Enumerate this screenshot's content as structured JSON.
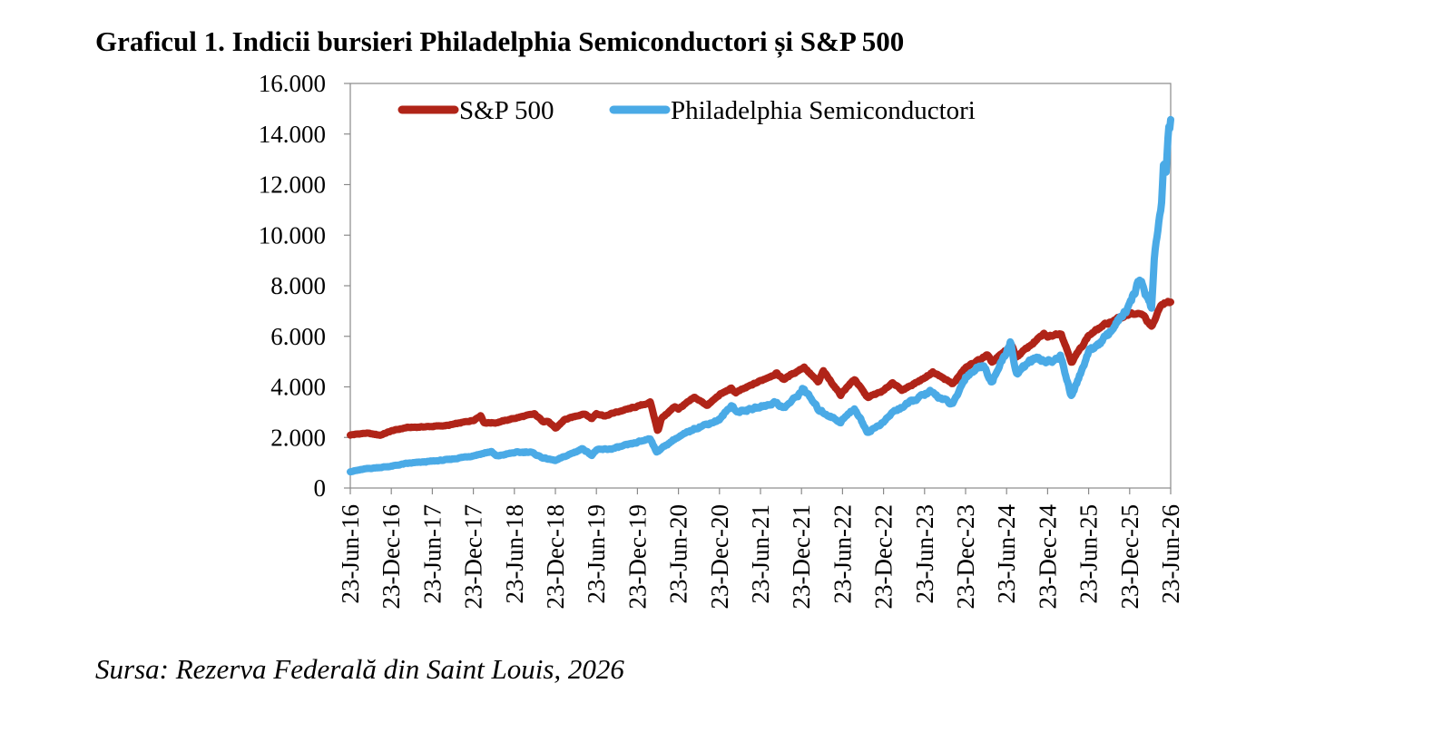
{
  "title": "Graficul 1. Indicii bursieri Philadelphia Semiconductori și S&P 500",
  "source": "Sursa: Rezerva Federală din Saint Louis, 2026",
  "chart_data": {
    "type": "line",
    "title": "Graficul 1. Indicii bursieri Philadelphia Semiconductori și S&P 500",
    "xlabel": "",
    "ylabel": "",
    "x_tick_labels": [
      "23-Jun-16",
      "23-Dec-16",
      "23-Jun-17",
      "23-Dec-17",
      "23-Jun-18",
      "23-Dec-18",
      "23-Jun-19",
      "23-Dec-19",
      "23-Jun-20",
      "23-Dec-20",
      "23-Jun-21",
      "23-Dec-21",
      "23-Jun-22",
      "23-Dec-22",
      "23-Jun-23",
      "23-Dec-23",
      "23-Jun-24",
      "23-Dec-24",
      "23-Jun-25",
      "23-Dec-25",
      "23-Jun-26"
    ],
    "x_range": [
      "2016-06-23",
      "2026-06-23"
    ],
    "y_ticks": [
      0,
      2000,
      4000,
      6000,
      8000,
      10000,
      12000,
      14000,
      16000
    ],
    "y_tick_labels": [
      "0",
      "2.000",
      "4.000",
      "6.000",
      "8.000",
      "10.000",
      "12.000",
      "14.000",
      "16.000"
    ],
    "ylim": [
      0,
      16000
    ],
    "grid": false,
    "legend_position": "top",
    "series": [
      {
        "name": "S&P 500",
        "color": "#b02418",
        "points": [
          [
            "2016-06-23",
            2100
          ],
          [
            "2016-09-01",
            2170
          ],
          [
            "2016-11-04",
            2090
          ],
          [
            "2016-12-23",
            2260
          ],
          [
            "2017-03-01",
            2390
          ],
          [
            "2017-06-23",
            2435
          ],
          [
            "2017-09-01",
            2475
          ],
          [
            "2017-12-23",
            2680
          ],
          [
            "2018-01-26",
            2870
          ],
          [
            "2018-02-08",
            2580
          ],
          [
            "2018-04-02",
            2580
          ],
          [
            "2018-06-23",
            2755
          ],
          [
            "2018-09-20",
            2930
          ],
          [
            "2018-10-29",
            2640
          ],
          [
            "2018-11-20",
            2640
          ],
          [
            "2018-12-24",
            2350
          ],
          [
            "2019-02-01",
            2700
          ],
          [
            "2019-04-30",
            2945
          ],
          [
            "2019-06-03",
            2745
          ],
          [
            "2019-06-23",
            2950
          ],
          [
            "2019-08-05",
            2845
          ],
          [
            "2019-09-01",
            2950
          ],
          [
            "2019-12-23",
            3225
          ],
          [
            "2020-02-19",
            3385
          ],
          [
            "2020-03-23",
            2240
          ],
          [
            "2020-04-08",
            2750
          ],
          [
            "2020-06-08",
            3230
          ],
          [
            "2020-06-23",
            3130
          ],
          [
            "2020-09-02",
            3580
          ],
          [
            "2020-10-30",
            3270
          ],
          [
            "2020-12-23",
            3690
          ],
          [
            "2021-02-12",
            3935
          ],
          [
            "2021-03-04",
            3770
          ],
          [
            "2021-06-23",
            4240
          ],
          [
            "2021-09-02",
            4535
          ],
          [
            "2021-10-04",
            4300
          ],
          [
            "2021-12-23",
            4725
          ],
          [
            "2022-01-03",
            4790
          ],
          [
            "2022-03-08",
            4170
          ],
          [
            "2022-03-29",
            4630
          ],
          [
            "2022-06-16",
            3670
          ],
          [
            "2022-06-23",
            3800
          ],
          [
            "2022-08-16",
            4305
          ],
          [
            "2022-10-12",
            3580
          ],
          [
            "2022-12-23",
            3845
          ],
          [
            "2023-02-02",
            4180
          ],
          [
            "2023-03-13",
            3860
          ],
          [
            "2023-06-23",
            4350
          ],
          [
            "2023-07-31",
            4590
          ],
          [
            "2023-10-27",
            4115
          ],
          [
            "2023-12-23",
            4755
          ],
          [
            "2024-03-28",
            5250
          ],
          [
            "2024-04-19",
            4970
          ],
          [
            "2024-06-23",
            5470
          ],
          [
            "2024-07-16",
            5665
          ],
          [
            "2024-08-05",
            5185
          ],
          [
            "2024-12-06",
            6090
          ],
          [
            "2024-12-23",
            5975
          ],
          [
            "2025-02-19",
            6145
          ],
          [
            "2025-04-08",
            4980
          ],
          [
            "2025-06-23",
            6030
          ],
          [
            "2025-09-01",
            6460
          ],
          [
            "2025-12-23",
            6900
          ],
          [
            "2026-02-20",
            6850
          ],
          [
            "2026-03-30",
            6350
          ],
          [
            "2026-05-15",
            7300
          ],
          [
            "2026-06-23",
            7350
          ]
        ]
      },
      {
        "name": "Philadelphia Semiconductori",
        "color": "#4aaae6",
        "points": [
          [
            "2016-06-23",
            650
          ],
          [
            "2016-09-01",
            760
          ],
          [
            "2016-12-23",
            860
          ],
          [
            "2017-03-01",
            970
          ],
          [
            "2017-06-23",
            1060
          ],
          [
            "2017-09-01",
            1120
          ],
          [
            "2017-12-23",
            1280
          ],
          [
            "2018-03-12",
            1440
          ],
          [
            "2018-04-05",
            1260
          ],
          [
            "2018-06-23",
            1400
          ],
          [
            "2018-09-01",
            1430
          ],
          [
            "2018-10-29",
            1190
          ],
          [
            "2018-12-24",
            1085
          ],
          [
            "2019-04-24",
            1560
          ],
          [
            "2019-06-03",
            1300
          ],
          [
            "2019-06-23",
            1500
          ],
          [
            "2019-09-01",
            1550
          ],
          [
            "2019-12-23",
            1800
          ],
          [
            "2020-02-19",
            1970
          ],
          [
            "2020-03-16",
            1420
          ],
          [
            "2020-06-08",
            1950
          ],
          [
            "2020-06-23",
            2000
          ],
          [
            "2020-09-02",
            2350
          ],
          [
            "2020-12-23",
            2700
          ],
          [
            "2021-02-16",
            3300
          ],
          [
            "2021-03-08",
            3000
          ],
          [
            "2021-06-23",
            3200
          ],
          [
            "2021-09-01",
            3400
          ],
          [
            "2021-10-04",
            3150
          ],
          [
            "2021-12-23",
            3800
          ],
          [
            "2021-12-27",
            4000
          ],
          [
            "2022-03-08",
            3100
          ],
          [
            "2022-06-16",
            2600
          ],
          [
            "2022-06-23",
            2700
          ],
          [
            "2022-08-16",
            3150
          ],
          [
            "2022-10-13",
            2200
          ],
          [
            "2022-12-23",
            2600
          ],
          [
            "2023-02-02",
            3000
          ],
          [
            "2023-06-23",
            3700
          ],
          [
            "2023-07-18",
            3800
          ],
          [
            "2023-10-27",
            3300
          ],
          [
            "2023-12-23",
            4400
          ],
          [
            "2024-03-08",
            4900
          ],
          [
            "2024-04-19",
            4200
          ],
          [
            "2024-06-23",
            5400
          ],
          [
            "2024-07-10",
            5800
          ],
          [
            "2024-08-05",
            4500
          ],
          [
            "2024-10-15",
            5100
          ],
          [
            "2024-12-23",
            5000
          ],
          [
            "2025-02-19",
            5200
          ],
          [
            "2025-04-08",
            3600
          ],
          [
            "2025-06-23",
            5400
          ],
          [
            "2025-09-01",
            5900
          ],
          [
            "2025-12-23",
            7200
          ],
          [
            "2026-02-05",
            8300
          ],
          [
            "2026-03-13",
            7500
          ],
          [
            "2026-03-30",
            7100
          ],
          [
            "2026-04-10",
            9000
          ],
          [
            "2026-05-01",
            10500
          ],
          [
            "2026-05-15",
            11500
          ],
          [
            "2026-05-22",
            12800
          ],
          [
            "2026-06-01",
            12300
          ],
          [
            "2026-06-12",
            14000
          ],
          [
            "2026-06-23",
            14500
          ]
        ]
      }
    ]
  }
}
